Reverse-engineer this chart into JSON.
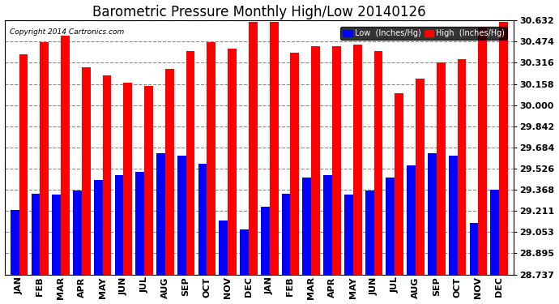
{
  "title": "Barometric Pressure Monthly High/Low 20140126",
  "copyright": "Copyright 2014 Cartronics.com",
  "legend_low": "Low  (Inches/Hg)",
  "legend_high": "High  (Inches/Hg)",
  "months": [
    "JAN",
    "FEB",
    "MAR",
    "APR",
    "MAY",
    "JUN",
    "JUL",
    "AUG",
    "SEP",
    "OCT",
    "NOV",
    "DEC",
    "JAN",
    "FEB",
    "MAR",
    "APR",
    "MAY",
    "JUN",
    "JUL",
    "AUG",
    "SEP",
    "OCT",
    "NOV",
    "DEC"
  ],
  "high_values": [
    30.38,
    30.47,
    30.52,
    30.28,
    30.22,
    30.17,
    30.14,
    30.27,
    30.4,
    30.47,
    30.42,
    30.62,
    30.62,
    30.39,
    30.44,
    30.44,
    30.45,
    30.4,
    30.09,
    30.2,
    30.32,
    30.34,
    30.58,
    30.62
  ],
  "low_values": [
    29.22,
    29.34,
    29.33,
    29.36,
    29.44,
    29.48,
    29.5,
    29.64,
    29.62,
    29.56,
    29.14,
    29.07,
    29.24,
    29.34,
    29.46,
    29.48,
    29.33,
    29.36,
    29.46,
    29.55,
    29.64,
    29.62,
    29.12,
    29.37
  ],
  "ylim_min": 28.737,
  "ylim_max": 30.632,
  "yticks": [
    28.737,
    28.895,
    29.053,
    29.211,
    29.368,
    29.526,
    29.684,
    29.842,
    30.0,
    30.158,
    30.316,
    30.474,
    30.632
  ],
  "bg_color": "#ffffff",
  "plot_bg_color": "#ffffff",
  "high_color": "#ff0000",
  "low_color": "#0000ff",
  "grid_color": "#888888",
  "title_fontsize": 12,
  "tick_fontsize": 8,
  "bar_width": 0.42
}
